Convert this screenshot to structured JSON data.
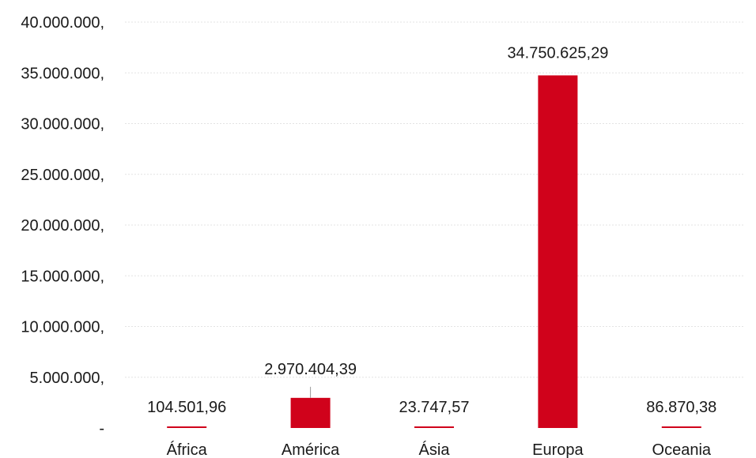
{
  "chart_data": {
    "type": "bar",
    "categories": [
      "África",
      "América",
      "Ásia",
      "Europa",
      "Oceania"
    ],
    "values": [
      104501.96,
      2970404.39,
      23747.57,
      34750625.29,
      86870.38
    ],
    "data_labels": [
      "104.501,96",
      "2.970.404,39",
      "23.747,57",
      "34.750.625,29",
      "86.870,38"
    ],
    "ylim": [
      0,
      40000000
    ],
    "yticks": [
      0,
      5000000,
      10000000,
      15000000,
      20000000,
      25000000,
      30000000,
      35000000,
      40000000
    ],
    "ytick_labels": [
      "-",
      "5.000.000,",
      "10.000.000,",
      "15.000.000,",
      "20.000.000,",
      "25.000.000,",
      "30.000.000,",
      "35.000.000,",
      "40.000.000,"
    ],
    "grid": true,
    "title": "",
    "xlabel": "",
    "ylabel": "",
    "colors": {
      "bar": "#d0021b"
    }
  }
}
